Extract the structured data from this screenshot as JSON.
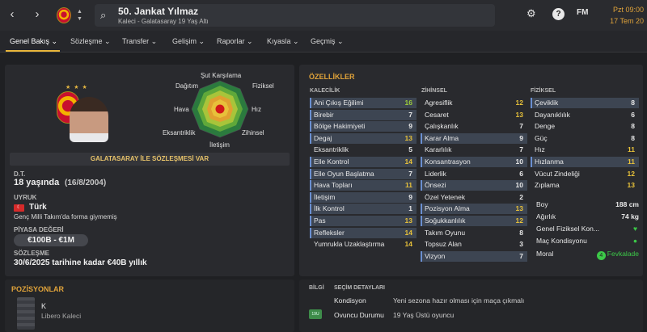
{
  "header": {
    "player_name": "50. Jankat Yılmaz",
    "player_subtitle": "Kaleci - Galatasaray 19 Yaş Altı",
    "fm_label": "FM",
    "date_day": "Pzt 09:00",
    "date": "17 Tem 20"
  },
  "tabs": [
    {
      "label": "Genel Bakış ⌄"
    },
    {
      "label": "Sözleşme ⌄"
    },
    {
      "label": "Transfer ⌄"
    },
    {
      "label": "Gelişim ⌄"
    },
    {
      "label": "Raporlar ⌄"
    },
    {
      "label": "Kıyasla ⌄"
    },
    {
      "label": "Geçmiş ⌄"
    }
  ],
  "radar": {
    "labels": [
      "Şut Karşılama",
      "Fiziksel",
      "Hız",
      "Zihinsel",
      "İletişim",
      "Eksantriklik",
      "Hava",
      "Dağıtım"
    ]
  },
  "profile": {
    "contract_banner": "GALATASARAY İLE SÖZLEŞMESİ VAR",
    "dob_label": "D.T.",
    "age": "18 yaşında",
    "dob": "(16/8/2004)",
    "nationality_label": "UYRUK",
    "flag_symbol": "☾",
    "nationality": "Türk",
    "intl_note": "Genç Milli Takım'da forma giymemiş",
    "value_label": "PİYASA DEĞERİ",
    "value": "€100B - €1M",
    "contract_label": "SÖZLEŞME",
    "contract": "30/6/2025 tarihine kadar €40B yıllık"
  },
  "attributes": {
    "title": "ÖZELLİKLER",
    "goalkeeping_header": "KALECİLİK",
    "mental_header": "ZİHİNSEL",
    "physical_header": "FİZİKSEL",
    "goalkeeping": [
      {
        "name": "Ani Çıkış Eğilimi",
        "value": "16",
        "tone": "g",
        "hl": true
      },
      {
        "name": "Birebir",
        "value": "7",
        "tone": "w",
        "hl": true
      },
      {
        "name": "Bölge Hakimiyeti",
        "value": "9",
        "tone": "w",
        "hl": true
      },
      {
        "name": "Degaj",
        "value": "13",
        "tone": "y",
        "hl": true
      },
      {
        "name": "Eksantriklik",
        "value": "5",
        "tone": "w",
        "hl": false
      },
      {
        "name": "Elle Kontrol",
        "value": "14",
        "tone": "y",
        "hl": true
      },
      {
        "name": "Elle Oyun Başlatma",
        "value": "7",
        "tone": "w",
        "hl": true
      },
      {
        "name": "Hava Topları",
        "value": "11",
        "tone": "y",
        "hl": true
      },
      {
        "name": "İletişim",
        "value": "9",
        "tone": "w",
        "hl": true
      },
      {
        "name": "İlk Kontrol",
        "value": "1",
        "tone": "w",
        "hl": true
      },
      {
        "name": "Pas",
        "value": "13",
        "tone": "y",
        "hl": true
      },
      {
        "name": "Refleksler",
        "value": "14",
        "tone": "y",
        "hl": true
      },
      {
        "name": "Yumrukla Uzaklaştırma",
        "value": "14",
        "tone": "y",
        "hl": false
      }
    ],
    "mental": [
      {
        "name": "Agresiflik",
        "value": "12",
        "tone": "y",
        "hl": false
      },
      {
        "name": "Cesaret",
        "value": "13",
        "tone": "y",
        "hl": false
      },
      {
        "name": "Çalışkanlık",
        "value": "7",
        "tone": "w",
        "hl": false
      },
      {
        "name": "Karar Alma",
        "value": "9",
        "tone": "w",
        "hl": true
      },
      {
        "name": "Kararlılık",
        "value": "7",
        "tone": "w",
        "hl": false
      },
      {
        "name": "Konsantrasyon",
        "value": "10",
        "tone": "w",
        "hl": true
      },
      {
        "name": "Liderlik",
        "value": "6",
        "tone": "w",
        "hl": false
      },
      {
        "name": "Önsezi",
        "value": "10",
        "tone": "w",
        "hl": true
      },
      {
        "name": "Özel Yetenek",
        "value": "2",
        "tone": "w",
        "hl": false
      },
      {
        "name": "Pozisyon Alma",
        "value": "13",
        "tone": "y",
        "hl": true
      },
      {
        "name": "Soğukkanlılık",
        "value": "12",
        "tone": "y",
        "hl": true
      },
      {
        "name": "Takım Oyunu",
        "value": "8",
        "tone": "w",
        "hl": false
      },
      {
        "name": "Topsuz Alan",
        "value": "3",
        "tone": "w",
        "hl": false
      },
      {
        "name": "Vizyon",
        "value": "7",
        "tone": "w",
        "hl": true
      }
    ],
    "physical": [
      {
        "name": "Çeviklik",
        "value": "8",
        "tone": "w",
        "hl": true
      },
      {
        "name": "Dayanıklılık",
        "value": "6",
        "tone": "w",
        "hl": false
      },
      {
        "name": "Denge",
        "value": "8",
        "tone": "w",
        "hl": false
      },
      {
        "name": "Güç",
        "value": "8",
        "tone": "w",
        "hl": false
      },
      {
        "name": "Hız",
        "value": "11",
        "tone": "y",
        "hl": false
      },
      {
        "name": "Hızlanma",
        "value": "11",
        "tone": "y",
        "hl": true
      },
      {
        "name": "Vücut Zindeliği",
        "value": "12",
        "tone": "y",
        "hl": false
      },
      {
        "name": "Zıplama",
        "value": "13",
        "tone": "y",
        "hl": false
      }
    ],
    "info": [
      {
        "name": "Boy",
        "value": "188 cm"
      },
      {
        "name": "Ağırlık",
        "value": "74 kg"
      },
      {
        "name": "Genel Fiziksel Kon...",
        "value": "♥"
      },
      {
        "name": "Maç Kondisyonu",
        "value": "●"
      },
      {
        "name": "Moral",
        "value": "Fevkalade"
      }
    ]
  },
  "positions": {
    "title": "POZİSYONLAR",
    "code": "K",
    "role": "Libero Kaleci"
  },
  "details": {
    "info_label": "BİLGİ",
    "selection_label": "SEÇİM DETAYLARI",
    "rows": [
      {
        "name": "Kondisyon",
        "value": "Yeni sezona hazır olması için maça çıkmalı"
      },
      {
        "name": "Ovuncu Durumu",
        "value": "19 Yaş Üstü oyuncu"
      }
    ],
    "badge": "19U"
  },
  "colors": {
    "accent": "#e0a33a",
    "green": "#9ccc3a",
    "yellow": "#e8c23a"
  }
}
